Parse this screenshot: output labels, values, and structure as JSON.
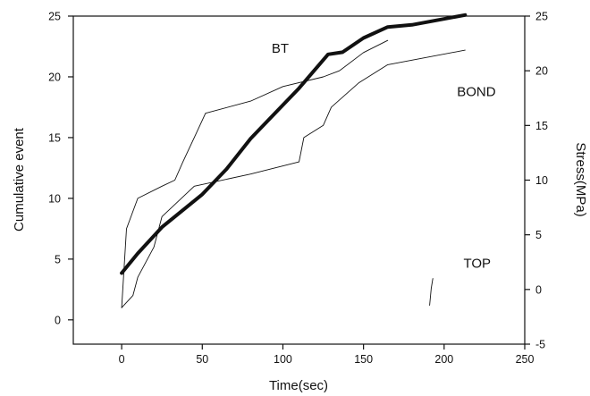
{
  "chart_data": {
    "type": "line",
    "title": "",
    "xlabel": "Time(sec)",
    "ylabel": "Cumulative event",
    "ylabel_right": "Stress(MPa)",
    "xlim": [
      -30,
      250
    ],
    "ylim": [
      -2,
      25
    ],
    "ylim_right": [
      -5,
      25
    ],
    "x_ticks": [
      0,
      50,
      100,
      150,
      200,
      250
    ],
    "y_ticks": [
      0,
      5,
      10,
      15,
      20,
      25
    ],
    "y_ticks_right": [
      -5,
      0,
      5,
      10,
      15,
      20,
      25
    ],
    "grid": false,
    "annotations": [
      {
        "text": "BT",
        "x": 93,
        "y": 22
      },
      {
        "text": "BOND",
        "x": 208,
        "y": 18.4
      },
      {
        "text": "TOP",
        "x": 212,
        "y": 4.3
      }
    ],
    "series": [
      {
        "axis": "right",
        "style": "thick",
        "x": [
          0,
          10,
          25,
          50,
          65,
          80,
          110,
          128,
          137,
          150,
          165,
          180,
          213
        ],
        "y": [
          1.5,
          3.3,
          5.7,
          8.7,
          11,
          13.8,
          18.4,
          21.5,
          21.7,
          23,
          24,
          24.2,
          25.1
        ]
      },
      {
        "axis": "left",
        "style": "thin",
        "x": [
          0,
          3,
          10,
          25,
          33,
          38,
          45,
          52,
          80,
          100,
          125,
          135,
          150,
          165
        ],
        "y": [
          1,
          7.5,
          10,
          11,
          11.5,
          13,
          15,
          17,
          18,
          19.2,
          20,
          20.5,
          22,
          23
        ]
      },
      {
        "axis": "left",
        "style": "thin",
        "x": [
          0,
          7,
          10,
          20,
          25,
          45,
          80,
          110,
          113,
          125,
          130,
          147,
          165,
          213
        ],
        "y": [
          1,
          2,
          3.5,
          6,
          8.5,
          11,
          12,
          13,
          15,
          16,
          17.5,
          19.5,
          21,
          22.2
        ]
      },
      {
        "axis": "left",
        "style": "thin",
        "x": [
          191,
          192,
          193
        ],
        "y": [
          1.2,
          2.6,
          3.4
        ]
      }
    ]
  }
}
